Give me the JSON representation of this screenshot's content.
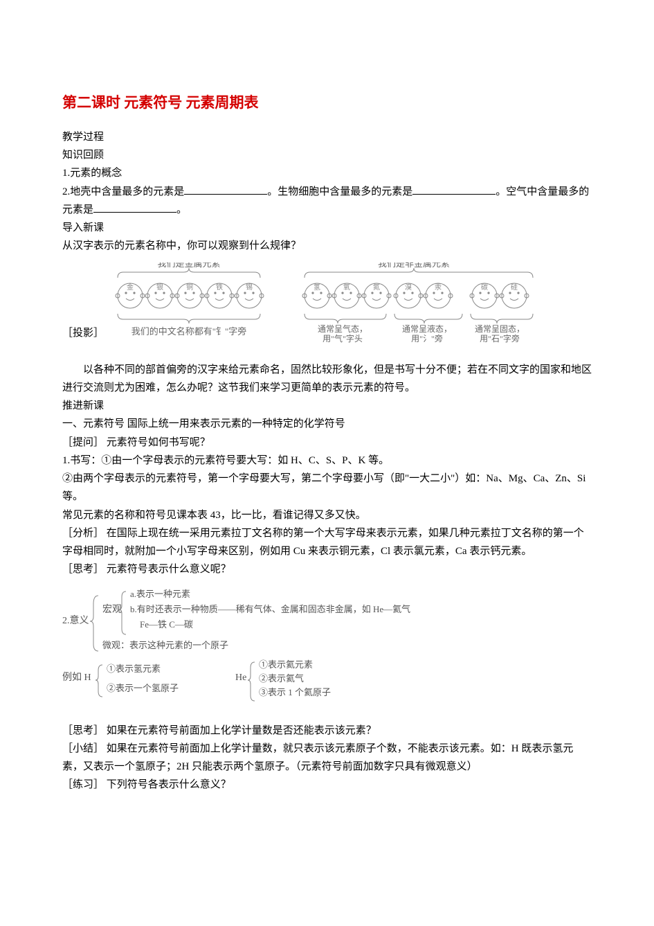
{
  "title_part1": "第二课时",
  "title_part2": " 元素符号 元素周期表",
  "lines": {
    "l1": "教学过程",
    "l2": "知识回顾",
    "l3": "1.元素的概念",
    "l4a": "2.地壳中含量最多的元素是",
    "l4b": "。生物细胞中含量最多的元素是",
    "l4c": "。空气中含量最多的元素是",
    "l4d": "。",
    "l5": "导入新课",
    "l6": "从汉字表示的元素名称中，你可以观察到什么规律？",
    "proj": "［投影］"
  },
  "diagram1": {
    "group1_label": "我们是金属元素",
    "group2_label": "我们是非金属元素",
    "faces1": [
      "金",
      "银",
      "铜",
      "铁",
      "锡"
    ],
    "faces2a": [
      "氢",
      "氧",
      "氮"
    ],
    "faces2b": [
      "溴",
      "汞"
    ],
    "faces2c": [
      "碳",
      "硅"
    ],
    "caption1": "我们的中文名称都有\"钅\"字旁",
    "caption2a_1": "通常呈气态，",
    "caption2a_2": "用\"气\"字头",
    "caption2b_1": "通常呈液态，",
    "caption2b_2": "用\"氵\"旁",
    "caption2c_1": "通常呈固态，",
    "caption2c_2": "用\"石\"字旁"
  },
  "body": {
    "p1": "以各种不同的部首偏旁的汉字来给元素命名，固然比较形象化，但是书写十分不便；若在不同文字的国家和地区进行交流则尤为困难，怎么办呢？这节我们来学习更简单的表示元素的符号。",
    "p2": "推进新课",
    "p3": "一、元素符号 国际上统一用来表示元素的一种特定的化学符号",
    "p4": "［提问］ 元素符号如何书写呢？",
    "p5": "1.书写：①由一个字母表示的元素符号要大写：如 H、C、S、P、K 等。",
    "p6": "②由两个字母表示的元素符号，第一个字母要大写，第二个字母要小写（即\"一大二小\"）如：Na、Mg、Ca、Zn、Si 等。",
    "p7": "常见元素的名称和符号见课本表 43，比一比，看谁记得又多又快。",
    "p8": "［分析］ 在国际上现在统一采用元素拉丁文名称的第一个大写字母来表示元素，如果几种元素拉丁文名称的第一个字母相同时，就附加一个小写字母来区别，例如用 Cu 来表示铜元素，Cl 表示氯元素，Ca 表示钙元素。",
    "p9": "［思考］ 元素符号表示什么意义呢？"
  },
  "diagram2": {
    "label_main": "2.意义",
    "macro_label": "宏观",
    "macro_a": "a.表示一种元素",
    "macro_b": "b.有时还表示一种物质——稀有气体、金属和固态非金属，如 He—氦气",
    "macro_c": "Fe—铁   C—碳",
    "micro": "微观：表示这种元素的一个原子",
    "ex_label": "例如 H",
    "ex_h1": "①表示氢元素",
    "ex_h2": "②表示一个氢原子",
    "ex_he_label": "He",
    "ex_he1": "①表示氦元素",
    "ex_he2": "②表示氦气",
    "ex_he3": "③表示 1 个氦原子"
  },
  "tail": {
    "p10": "［思考］ 如果在元素符号前面加上化学计量数是否还能表示该元素？",
    "p11": "［小结］ 如果在元素符号前面加上化学计量数，就只表示该元素原子个数，不能表示该元素。如：H 既表示氢元素，又表示一个氢原子；2H 只能表示两个氢原子。（元素符号前面加数字只具有微观意义）",
    "p12": "［练习］ 下列符号各表示什么意义？"
  },
  "colors": {
    "title_red": "#d40000",
    "text": "#000000",
    "diagram_gray": "#888888",
    "diagram_text": "#666666",
    "meaning_gray": "#555555",
    "background": "#ffffff"
  }
}
